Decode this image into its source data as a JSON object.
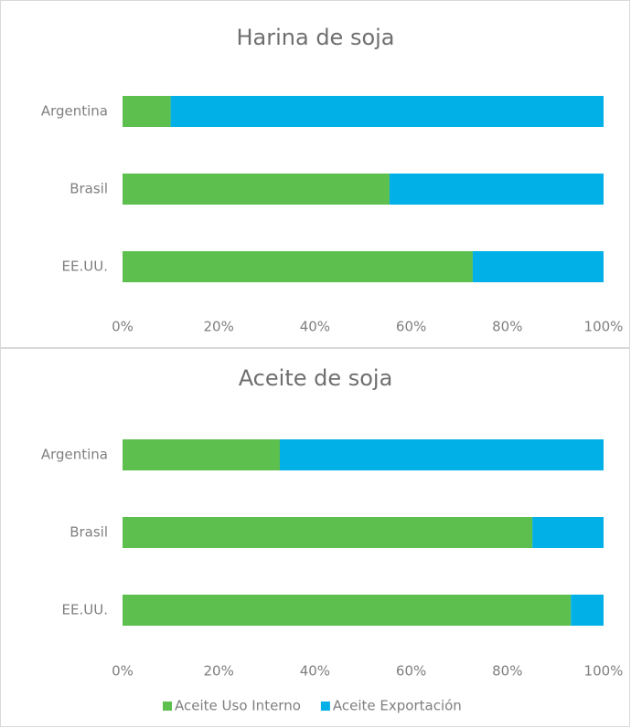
{
  "chart_data": [
    {
      "type": "stacked_bar_horizontal",
      "title": "Harina de soja",
      "categories": [
        "Argentina",
        "Brasil",
        "EE.UU."
      ],
      "series": [
        {
          "color": "#5cbf4e",
          "values": [
            10,
            55.5,
            72.8
          ]
        },
        {
          "color": "#00b0e6",
          "values": [
            90,
            44.5,
            27.2
          ]
        }
      ],
      "xlim": [
        0,
        100
      ],
      "xticks": [
        {
          "value": 0,
          "label": "0%"
        },
        {
          "value": 20,
          "label": "20%"
        },
        {
          "value": 40,
          "label": "40%"
        },
        {
          "value": 60,
          "label": "60%"
        },
        {
          "value": 80,
          "label": "80%"
        },
        {
          "value": 100,
          "label": "100%"
        }
      ]
    },
    {
      "type": "stacked_bar_horizontal",
      "title": "Aceite de soja",
      "categories": [
        "Argentina",
        "Brasil",
        "EE.UU."
      ],
      "series": [
        {
          "name": "Aceite Uso Interno",
          "color": "#5cbf4e",
          "values": [
            32.7,
            85.2,
            93.2
          ]
        },
        {
          "name": "Aceite Exportación",
          "color": "#00b0e6",
          "values": [
            67.3,
            14.8,
            6.8
          ]
        }
      ],
      "xlim": [
        0,
        100
      ],
      "xticks": [
        {
          "value": 0,
          "label": "0%"
        },
        {
          "value": 20,
          "label": "20%"
        },
        {
          "value": 40,
          "label": "40%"
        },
        {
          "value": 60,
          "label": "60%"
        },
        {
          "value": 80,
          "label": "80%"
        },
        {
          "value": 100,
          "label": "100%"
        }
      ],
      "legend": "bottom"
    }
  ]
}
